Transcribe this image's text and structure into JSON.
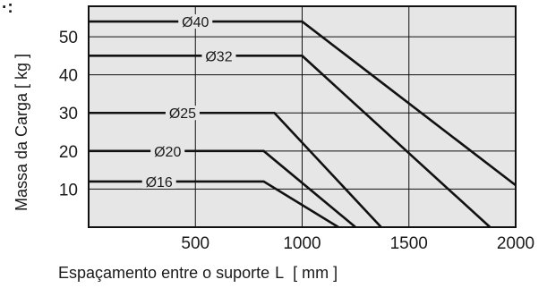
{
  "chart_data": {
    "type": "line",
    "xlabel_text": "Espaçamento entre o suporte",
    "xlabel_var": "L",
    "xlabel_unit": "[ mm ]",
    "ylabel": "Massa da Carga [ kg ]",
    "corner_text": "·:",
    "xlim": [
      0,
      2000
    ],
    "ylim": [
      0,
      58
    ],
    "x_ticks": [
      500,
      1000,
      1500,
      2000
    ],
    "y_ticks": [
      10,
      20,
      30,
      40,
      50
    ],
    "grid": true,
    "legend": "inline labels on lines",
    "colors": {
      "plot_background": "#e6e6e6",
      "grid": "#111111",
      "line": "#111111"
    },
    "series": [
      {
        "name": "Ø40",
        "label_x": 500,
        "points": [
          [
            0,
            54
          ],
          [
            1000,
            54
          ],
          [
            2000,
            11
          ]
        ]
      },
      {
        "name": "Ø32",
        "label_x": 610,
        "points": [
          [
            0,
            45
          ],
          [
            1000,
            45
          ],
          [
            1880,
            0
          ]
        ]
      },
      {
        "name": "Ø25",
        "label_x": 440,
        "points": [
          [
            0,
            30
          ],
          [
            870,
            30
          ],
          [
            1370,
            0
          ]
        ]
      },
      {
        "name": "Ø20",
        "label_x": 370,
        "points": [
          [
            0,
            20
          ],
          [
            820,
            20
          ],
          [
            1250,
            0
          ]
        ]
      },
      {
        "name": "Ø16",
        "label_x": 330,
        "points": [
          [
            0,
            12
          ],
          [
            820,
            12
          ],
          [
            1170,
            0
          ]
        ]
      }
    ]
  }
}
